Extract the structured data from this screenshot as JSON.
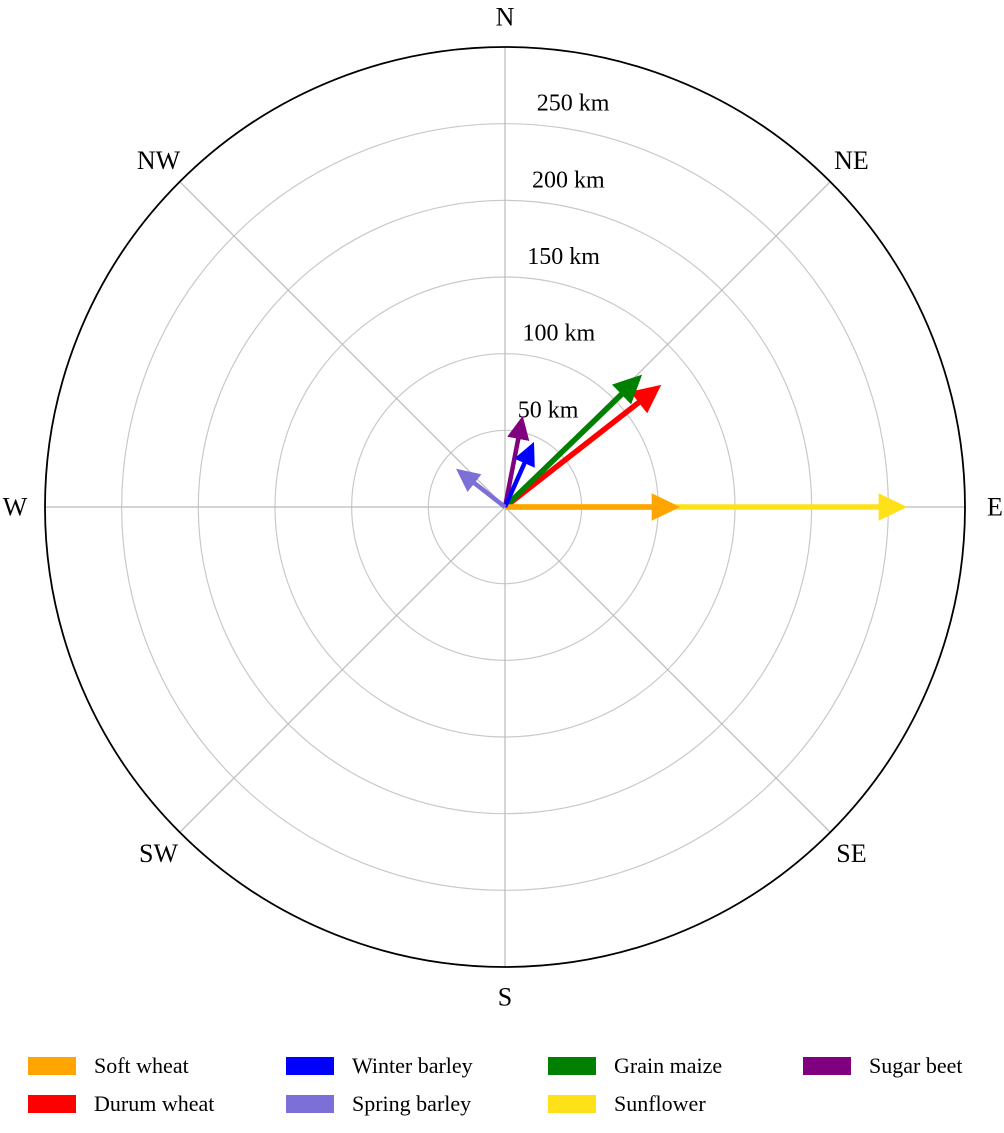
{
  "chart_data": {
    "type": "polar-vector",
    "title": "",
    "units": "km",
    "r_max_km": 300,
    "rings_km": [
      50,
      100,
      150,
      200,
      250
    ],
    "ring_labels": [
      "50 km",
      "100 km",
      "150 km",
      "200 km",
      "250 km"
    ],
    "grid": true,
    "compass": [
      {
        "label": "N",
        "bearing_deg": 0
      },
      {
        "label": "NE",
        "bearing_deg": 45
      },
      {
        "label": "E",
        "bearing_deg": 90
      },
      {
        "label": "SE",
        "bearing_deg": 135
      },
      {
        "label": "S",
        "bearing_deg": 180
      },
      {
        "label": "SW",
        "bearing_deg": 225
      },
      {
        "label": "W",
        "bearing_deg": 270
      },
      {
        "label": "NW",
        "bearing_deg": 315
      }
    ],
    "vectors": [
      {
        "name": "Soft wheat",
        "color": "#FFA500",
        "bearing_deg": 90,
        "distance_km": 110
      },
      {
        "name": "Durum wheat",
        "color": "#FF0000",
        "bearing_deg": 52,
        "distance_km": 125
      },
      {
        "name": "Winter barley",
        "color": "#0000FF",
        "bearing_deg": 24,
        "distance_km": 43
      },
      {
        "name": "Spring barley",
        "color": "#7D6FD8",
        "bearing_deg": 308,
        "distance_km": 37
      },
      {
        "name": "Grain maize",
        "color": "#008000",
        "bearing_deg": 46,
        "distance_km": 120
      },
      {
        "name": "Sunflower",
        "color": "#FFE119",
        "bearing_deg": 90,
        "distance_km": 258
      },
      {
        "name": "Sugar beet",
        "color": "#800080",
        "bearing_deg": 11,
        "distance_km": 57
      }
    ],
    "legend_position": "bottom",
    "legend_columns": [
      [
        "Soft wheat",
        "Durum wheat"
      ],
      [
        "Winter barley",
        "Spring barley"
      ],
      [
        "Grain maize",
        "Sunflower"
      ],
      [
        "Sugar beet"
      ]
    ],
    "colors": {
      "grid_ring": "#c9c9c9",
      "grid_spoke": "#bbbbbb",
      "outer_circle": "#000000"
    }
  }
}
